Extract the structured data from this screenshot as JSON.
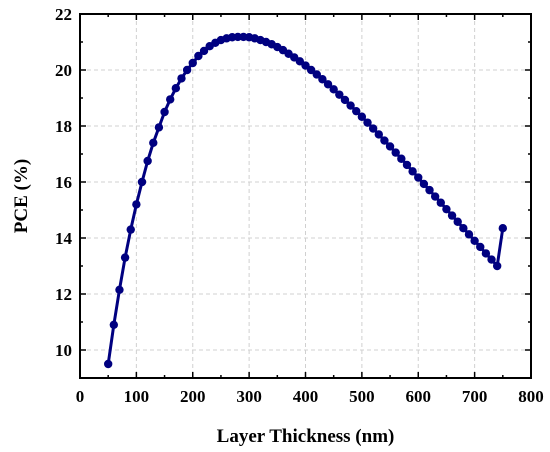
{
  "chart_data": {
    "type": "line",
    "title": "",
    "xlabel": "Layer Thickness (nm)",
    "ylabel": "PCE (%)",
    "xlim": [
      0,
      800
    ],
    "ylim": [
      9,
      22
    ],
    "xticks": [
      0,
      100,
      200,
      300,
      400,
      500,
      600,
      700,
      800
    ],
    "yticks": [
      10,
      12,
      14,
      16,
      18,
      20,
      22
    ],
    "grid": true,
    "legend": "none",
    "line_color": "#000080",
    "marker": "circle",
    "series": [
      {
        "x": [
          50,
          60,
          70,
          80,
          90,
          100,
          110,
          120,
          130,
          140,
          150,
          160,
          170,
          180,
          190,
          200,
          210,
          220,
          230,
          240,
          250,
          260,
          270,
          280,
          290,
          300,
          310,
          320,
          330,
          340,
          350,
          360,
          370,
          380,
          390,
          400,
          410,
          420,
          430,
          440,
          450,
          460,
          470,
          480,
          490,
          500,
          510,
          520,
          530,
          540,
          550,
          560,
          570,
          580,
          590,
          600,
          610,
          620,
          630,
          640,
          650,
          660,
          670,
          680,
          690,
          700,
          710,
          720,
          730,
          740,
          750
        ],
        "values": [
          9.5,
          10.9,
          12.15,
          13.3,
          14.3,
          15.2,
          16.0,
          16.75,
          17.4,
          17.95,
          18.5,
          18.95,
          19.35,
          19.7,
          20.0,
          20.25,
          20.5,
          20.68,
          20.85,
          20.97,
          21.07,
          21.13,
          21.17,
          21.18,
          21.18,
          21.17,
          21.13,
          21.07,
          21.0,
          20.92,
          20.82,
          20.71,
          20.58,
          20.45,
          20.31,
          20.16,
          20.0,
          19.84,
          19.67,
          19.49,
          19.31,
          19.12,
          18.93,
          18.73,
          18.53,
          18.33,
          18.12,
          17.91,
          17.7,
          17.48,
          17.27,
          17.05,
          16.83,
          16.61,
          16.38,
          16.16,
          15.93,
          15.71,
          15.48,
          15.26,
          15.03,
          14.8,
          14.58,
          14.35,
          14.13,
          13.9,
          13.68,
          13.45,
          13.23,
          13.0,
          14.35
        ]
      }
    ]
  }
}
